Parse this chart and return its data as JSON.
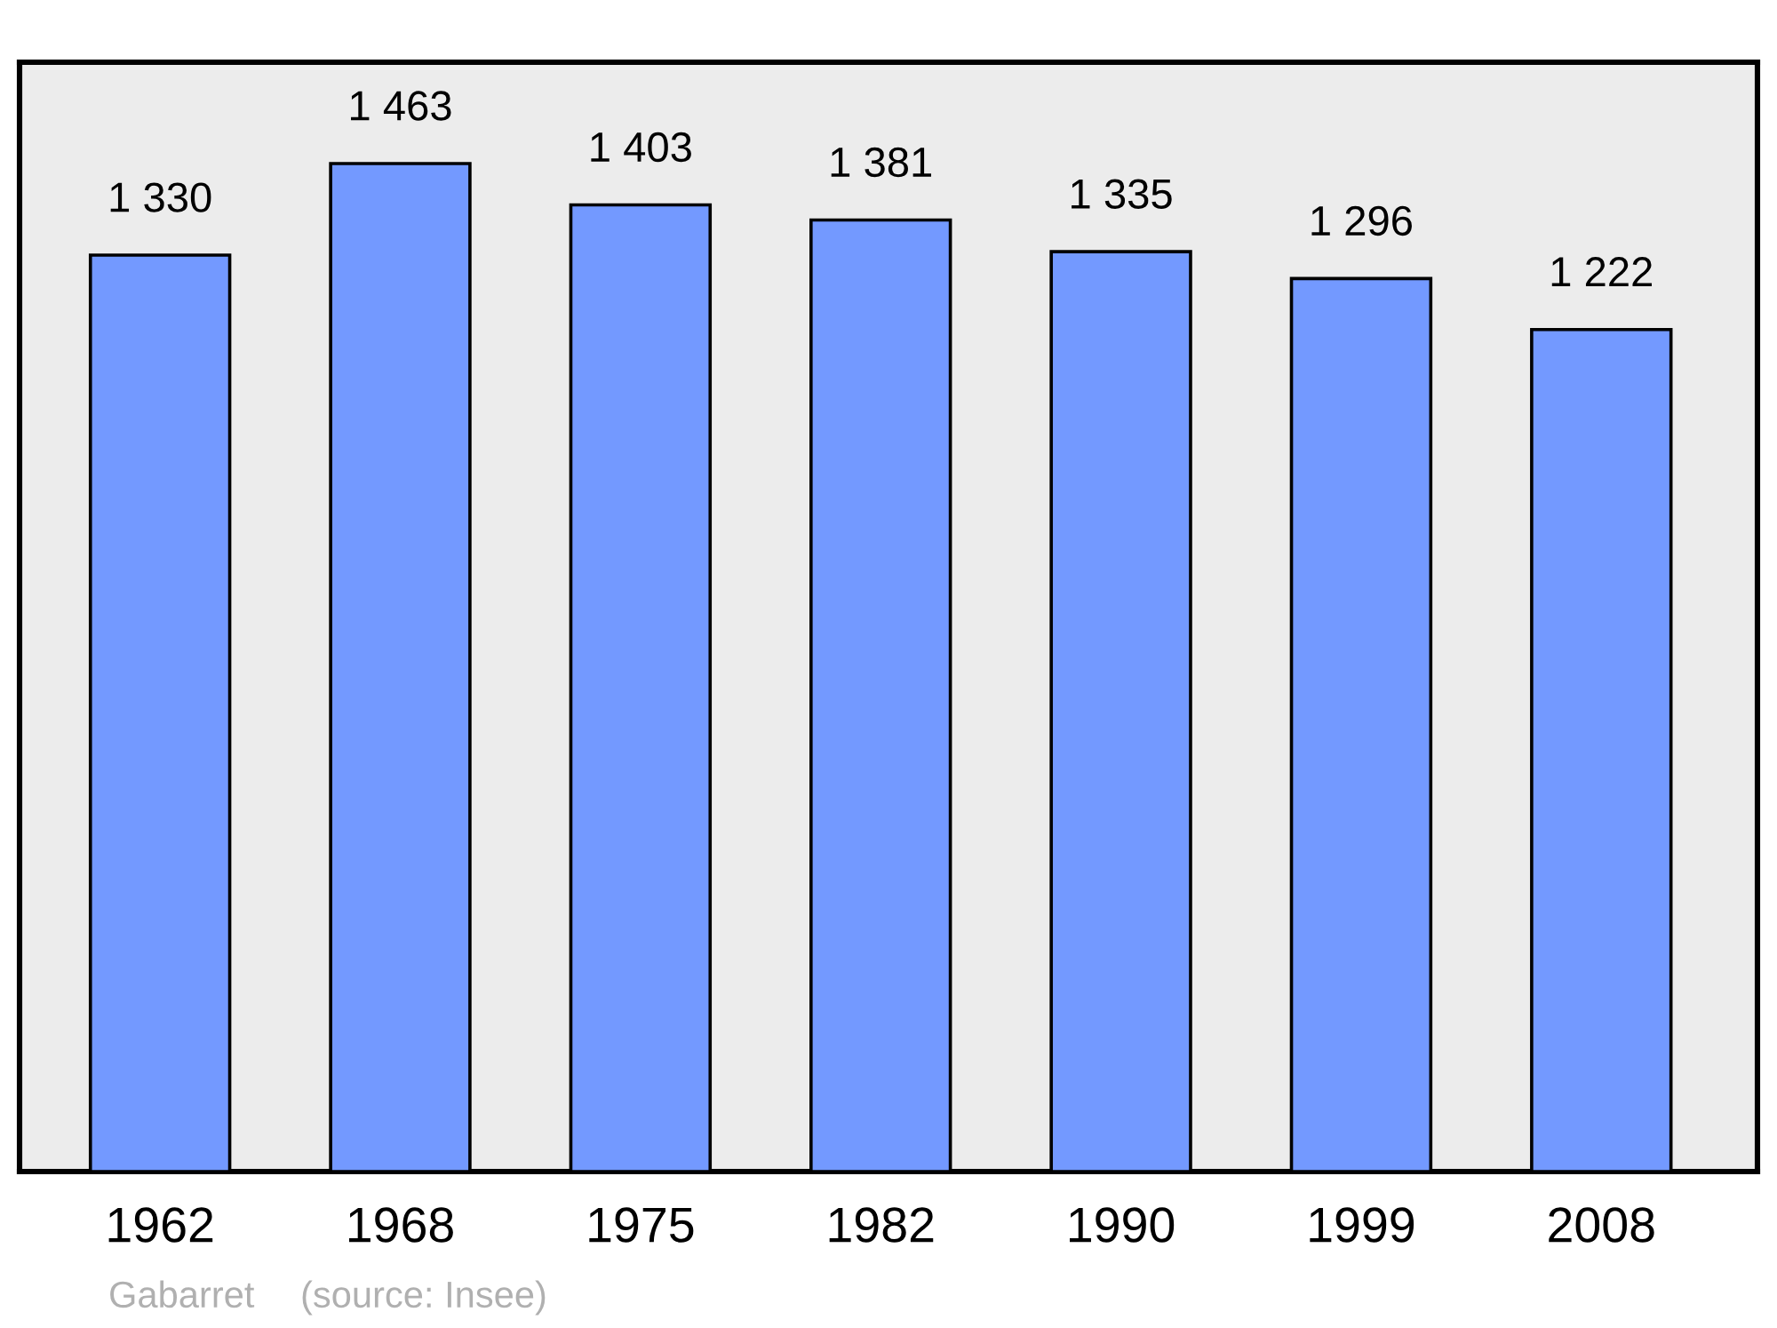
{
  "chart_data": {
    "type": "bar",
    "categories": [
      "1962",
      "1968",
      "1975",
      "1982",
      "1990",
      "1999",
      "2008"
    ],
    "values": [
      1330,
      1463,
      1403,
      1381,
      1335,
      1296,
      1222
    ],
    "value_labels": [
      "1 330",
      "1 463",
      "1 403",
      "1 381",
      "1 335",
      "1 296",
      "1 222"
    ],
    "color": "#7399ff",
    "ylim": [
      0,
      1610
    ],
    "tick_labels": "x",
    "grid": false,
    "legend": false,
    "annotations": [
      "Gabarret",
      "(source: Insee)"
    ]
  }
}
